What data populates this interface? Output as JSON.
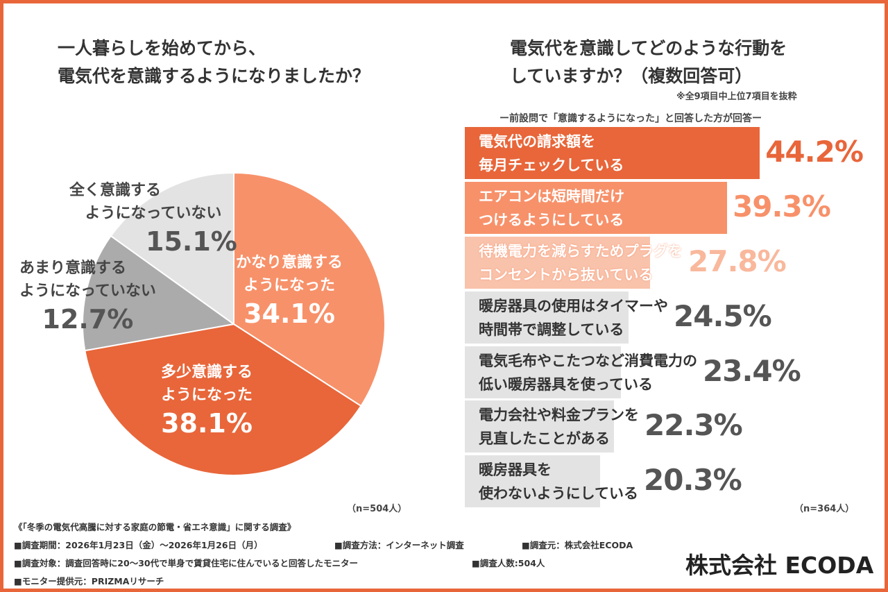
{
  "left": {
    "title_line1": "一人暮らしを始めてから、",
    "title_line2": "電気代を意識するようになりましたか？",
    "n_label": "（n=504人）"
  },
  "right": {
    "title_line1": "電気代を意識してどのような行動を",
    "title_line2": "していますか？（複数回答可）",
    "note": "※全9項目中上位7項目を抜粋",
    "subtitle": "ー前設問で「意識するようになった」と回答した方が回答ー",
    "n_label": "（n=364人）"
  },
  "chart_data": [
    {
      "type": "pie",
      "title": "一人暮らしを始めてから、電気代を意識するようになりましたか？",
      "start": "top, clockwise",
      "slices": [
        {
          "label_line1": "かなり意識する",
          "label_line2": "ようになった",
          "value": 34.1,
          "value_label": "34.1%",
          "color": "#f7916a"
        },
        {
          "label_line1": "多少意識する",
          "label_line2": "ようになった",
          "value": 38.1,
          "value_label": "38.1%",
          "color": "#e8663a"
        },
        {
          "label_line1": "あまり意識する",
          "label_line2": "ようになっていない",
          "value": 12.7,
          "value_label": "12.7%",
          "color": "#ababab"
        },
        {
          "label_line1": "全く意識する",
          "label_line2": "ようになっていない",
          "value": 15.1,
          "value_label": "15.1%",
          "color": "#e3e3e3"
        }
      ]
    },
    {
      "type": "bar",
      "orientation": "horizontal",
      "title": "電気代を意識してどのような行動をしていますか？（複数回答可）",
      "bars": [
        {
          "label_line1": "電気代の請求額を",
          "label_line2": "毎月チェックしている",
          "value": 44.2,
          "value_label": "44.2%",
          "color": "#e8663a",
          "value_color": "#e8663a",
          "text_color": "#ffffff"
        },
        {
          "label_line1": "エアコンは短時間だけ",
          "label_line2": "つけるようにしている",
          "value": 39.3,
          "value_label": "39.3%",
          "color": "#f7916a",
          "value_color": "#f7916a",
          "text_color": "#ffffff"
        },
        {
          "label_line1": "待機電力を減らすためプラグを",
          "label_line2": "コンセントから抜いている",
          "value": 27.8,
          "value_label": "27.8%",
          "color": "#f9c2ab",
          "value_color": "#f9b89c",
          "text_color": "#ffffff"
        },
        {
          "label_line1": "暖房器具の使用はタイマーや",
          "label_line2": "時間帯で調整している",
          "value": 24.5,
          "value_label": "24.5%",
          "color": "#e3e3e3",
          "value_color": "#555555",
          "text_color": "#333333"
        },
        {
          "label_line1": "電気毛布やこたつなど消費電力の",
          "label_line2": "低い暖房器具を使っている",
          "value": 23.4,
          "value_label": "23.4%",
          "color": "#e3e3e3",
          "value_color": "#555555",
          "text_color": "#333333"
        },
        {
          "label_line1": "電力会社や料金プランを",
          "label_line2": "見直したことがある",
          "value": 22.3,
          "value_label": "22.3%",
          "color": "#e3e3e3",
          "value_color": "#555555",
          "text_color": "#333333"
        },
        {
          "label_line1": "暖房器具を",
          "label_line2": "使わないようにしている",
          "value": 20.3,
          "value_label": "20.3%",
          "color": "#e3e3e3",
          "value_color": "#555555",
          "text_color": "#333333"
        }
      ]
    }
  ],
  "footer": {
    "survey_title": "《「冬季の電気代高騰に対する家庭の節電・省エネ意識」に関する調査》",
    "period": "■調査期間：2026年1月23日（金）～2026年1月26日（月）",
    "method": "■調査方法：インターネット調査",
    "source": "■調査元：株式会社ECODA",
    "target": "■調査対象：調査回答時に20～30代で単身で賃貸住宅に住んでいると回答したモニター",
    "count": "■調査人数:504人",
    "provider": "■モニター提供元：PRIZMAリサーチ"
  },
  "logo": "株式会社 ECODA",
  "colors": {
    "accent": "#e8663a",
    "border": "#e8663a"
  }
}
